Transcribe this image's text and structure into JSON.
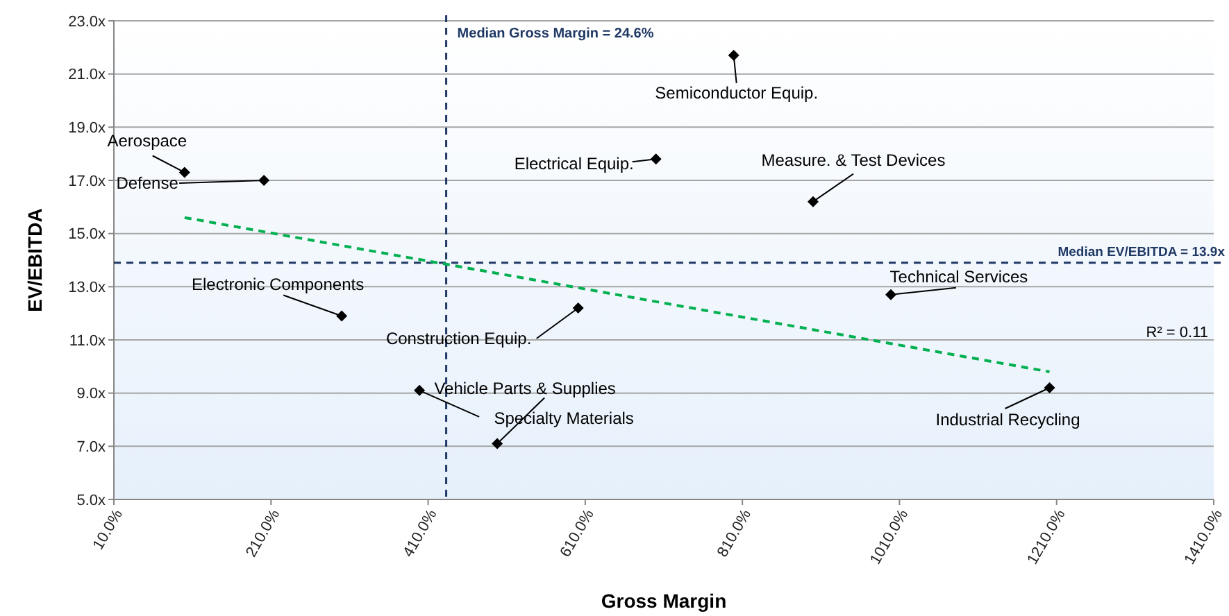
{
  "chart_data": {
    "type": "scatter",
    "xlabel": "Gross Margin",
    "ylabel": "EV/EBITDA",
    "xlim": [
      10,
      1410
    ],
    "xticks": [
      {
        "value": 10,
        "label": "10.0%"
      },
      {
        "value": 210,
        "label": "210.0%"
      },
      {
        "value": 410,
        "label": "410.0%"
      },
      {
        "value": 610,
        "label": "610.0%"
      },
      {
        "value": 810,
        "label": "810.0%"
      },
      {
        "value": 1010,
        "label": "1010.0%"
      },
      {
        "value": 1210,
        "label": "1210.0%"
      },
      {
        "value": 1410,
        "label": "1410.0%"
      }
    ],
    "ylim": [
      5,
      23
    ],
    "yticks": [
      {
        "value": 5,
        "label": "5.0x"
      },
      {
        "value": 7,
        "label": "7.0x"
      },
      {
        "value": 9,
        "label": "9.0x"
      },
      {
        "value": 11,
        "label": "11.0x"
      },
      {
        "value": 13,
        "label": "13.0x"
      },
      {
        "value": 15,
        "label": "15.0x"
      },
      {
        "value": 17,
        "label": "17.0x"
      },
      {
        "value": 19,
        "label": "19.0x"
      },
      {
        "value": 21,
        "label": "21.0x"
      },
      {
        "value": 23,
        "label": "23.0x"
      }
    ],
    "grid": "y",
    "marker": "diamond",
    "series": [
      {
        "color": "#000000",
        "x": [
          100,
          201,
          300,
          601,
          399,
          498,
          799,
          700,
          900,
          999,
          1201
        ],
        "values": [
          17.3,
          17.0,
          11.9,
          12.2,
          9.1,
          7.1,
          21.7,
          17.8,
          16.2,
          12.7,
          9.2
        ]
      },
      {
        "type": "line",
        "color": "#00b050",
        "line_style": "dashed",
        "marker": "none",
        "x": [
          100,
          1201
        ],
        "values": [
          15.6,
          9.8
        ]
      }
    ],
    "ref_lines": [
      {
        "axis": "x",
        "value": 433,
        "color": "#1f3864",
        "line_style": "dashed"
      },
      {
        "axis": "y",
        "value": 13.9,
        "label": "Median EV/EBITDA = 13.9x",
        "color": "#1f3864",
        "line_style": "dashed"
      }
    ],
    "annotations": [
      {
        "text": "Aerospace",
        "x": 100,
        "y": 17.3
      },
      {
        "text": "Defense",
        "x": 201,
        "y": 17.0
      },
      {
        "text": "Electronic Components",
        "x": 300,
        "y": 11.9
      },
      {
        "text": "Construction Equip.",
        "x": 601,
        "y": 12.2
      },
      {
        "text": "Specialty Materials",
        "x": 399,
        "y": 9.1
      },
      {
        "text": "Vehicle Parts & Supplies",
        "x": 498,
        "y": 7.1
      },
      {
        "text": "Semiconductor Equip.",
        "x": 799,
        "y": 21.7
      },
      {
        "text": "Electrical Equip.",
        "x": 700,
        "y": 17.8
      },
      {
        "text": "Measure. & Test Devices",
        "x": 900,
        "y": 16.2
      },
      {
        "text": "Technical Services",
        "x": 999,
        "y": 12.7
      },
      {
        "text": "Industrial Recycling",
        "x": 1201,
        "y": 9.2
      },
      "Median Gross Margin = 24.6%",
      "R² = 0.11"
    ]
  }
}
